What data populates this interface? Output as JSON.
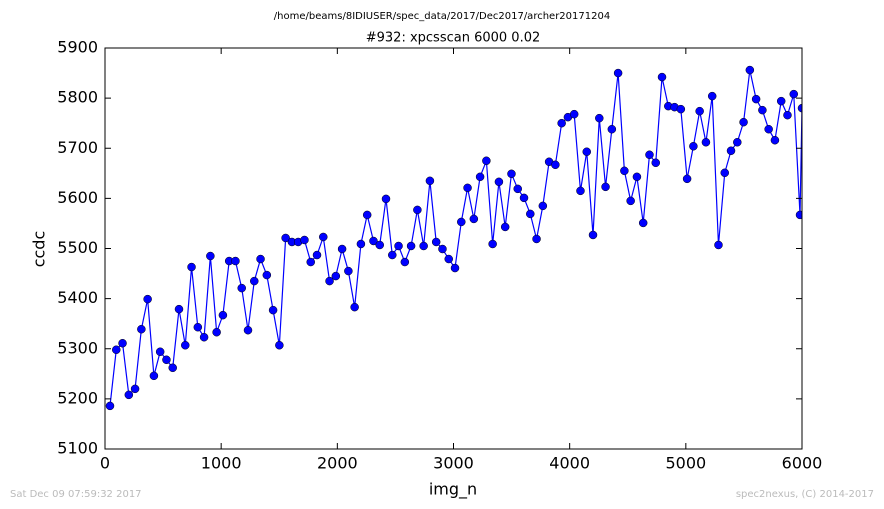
{
  "chart_data": {
    "type": "line",
    "suptitle": "/home/beams/8IDIUSER/spec_data/2017/Dec2017/archer20171204",
    "title": "#932: xpcsscan 6000 0.02",
    "x_label": "img_n",
    "y_label": "ccdc",
    "footer_left": "Sat Dec 09 07:59:32 2017",
    "footer_right": "spec2nexus, (C) 2014-2017",
    "xlim": [
      0,
      6000
    ],
    "xticks": [
      0,
      1000,
      2000,
      3000,
      4000,
      5000,
      6000
    ],
    "ylim": [
      5100,
      5900
    ],
    "yticks": [
      5100,
      5200,
      5300,
      5400,
      5500,
      5600,
      5700,
      5800,
      5900
    ],
    "x": [
      43,
      97,
      151,
      205,
      259,
      313,
      367,
      421,
      475,
      529,
      583,
      637,
      691,
      745,
      799,
      853,
      907,
      961,
      1015,
      1069,
      1123,
      1177,
      1231,
      1285,
      1339,
      1393,
      1447,
      1501,
      1555,
      1609,
      1663,
      1717,
      1771,
      1825,
      1879,
      1933,
      1987,
      2041,
      2095,
      2149,
      2203,
      2257,
      2311,
      2365,
      2419,
      2473,
      2527,
      2581,
      2635,
      2689,
      2743,
      2797,
      2851,
      2905,
      2959,
      3013,
      3067,
      3121,
      3175,
      3229,
      3283,
      3337,
      3391,
      3445,
      3499,
      3553,
      3607,
      3661,
      3715,
      3769,
      3823,
      3877,
      3931,
      3985,
      4039,
      4093,
      4147,
      4201,
      4255,
      4309,
      4363,
      4417,
      4471,
      4525,
      4579,
      4633,
      4687,
      4741,
      4795,
      4849,
      4903,
      4957,
      5011,
      5065,
      5119,
      5173,
      5227,
      5281,
      5335,
      5389,
      5443,
      5497,
      5551,
      5605,
      5659,
      5713,
      5767,
      5821,
      5875,
      5929,
      5983,
      6000
    ],
    "series": [
      {
        "color": "#0000ff",
        "values": [
          5186,
          5298,
          5311,
          5208,
          5220,
          5339,
          5399,
          5246,
          5294,
          5278,
          5262,
          5379,
          5307,
          5463,
          5343,
          5323,
          5485,
          5333,
          5367,
          5475,
          5475,
          5421,
          5337,
          5435,
          5479,
          5447,
          5377,
          5307,
          5521,
          5513,
          5513,
          5517,
          5473,
          5487,
          5523,
          5435,
          5445,
          5499,
          5455,
          5383,
          5509,
          5567,
          5515,
          5507,
          5599,
          5487,
          5505,
          5473,
          5505,
          5577,
          5505,
          5635,
          5513,
          5499,
          5479,
          5461,
          5553,
          5621,
          5559,
          5643,
          5675,
          5509,
          5633,
          5543,
          5649,
          5619,
          5601,
          5569,
          5519,
          5585,
          5673,
          5667,
          5750,
          5762,
          5768,
          5615,
          5693,
          5527,
          5760,
          5623,
          5738,
          5850,
          5655,
          5595,
          5643,
          5551,
          5687,
          5671,
          5842,
          5784,
          5782,
          5778,
          5639,
          5704,
          5774,
          5712,
          5804,
          5507,
          5651,
          5695,
          5712,
          5752,
          5856,
          5798,
          5776,
          5738,
          5716,
          5794,
          5766,
          5808,
          5567,
          5780
        ]
      }
    ]
  }
}
